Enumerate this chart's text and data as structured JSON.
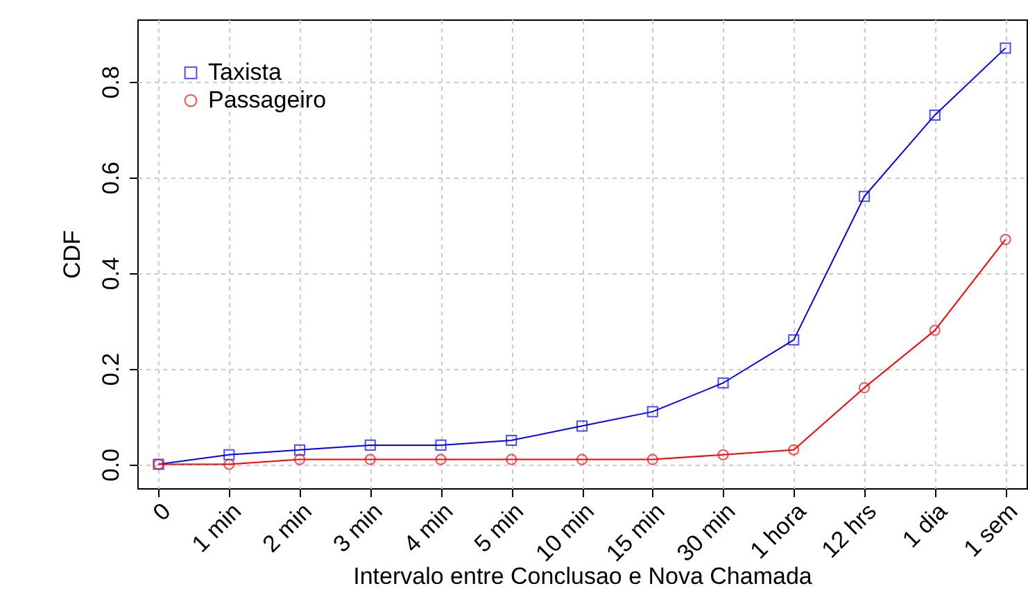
{
  "chart_data": {
    "type": "line",
    "xlabel": "Intervalo entre Conclusao e Nova Chamada",
    "ylabel": "CDF",
    "categories": [
      "0",
      "1 min",
      "2 min",
      "3 min",
      "4 min",
      "5 min",
      "10 min",
      "15 min",
      "30 min",
      "1 hora",
      "12 hrs",
      "1 dia",
      "1 sem"
    ],
    "series": [
      {
        "name": "Taxista",
        "color": "#0000ff",
        "marker": "square",
        "values": [
          0,
          0.02,
          0.03,
          0.04,
          0.04,
          0.05,
          0.08,
          0.11,
          0.17,
          0.26,
          0.56,
          0.73,
          0.87
        ]
      },
      {
        "name": "Passageiro",
        "color": "#ff0000",
        "marker": "circle",
        "values": [
          0,
          0,
          0.01,
          0.01,
          0.01,
          0.01,
          0.01,
          0.01,
          0.02,
          0.03,
          0.16,
          0.28,
          0.47
        ]
      }
    ],
    "ylim": [
      -0.05,
      0.93
    ],
    "yticks": [
      {
        "value": 0,
        "label": "0.0"
      },
      {
        "value": 0.2,
        "label": "0.2"
      },
      {
        "value": 0.4,
        "label": "0.4"
      },
      {
        "value": 0.6,
        "label": "0.6"
      },
      {
        "value": 0.8,
        "label": "0.8"
      }
    ],
    "grid": true,
    "legend": "top left",
    "line_style": "solid"
  }
}
